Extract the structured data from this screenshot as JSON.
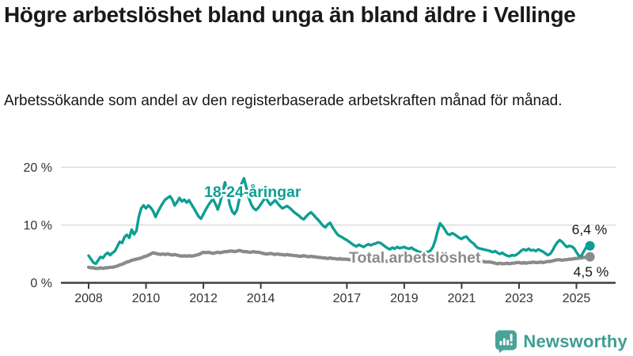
{
  "header": {
    "title": "Högre arbetslöshet bland unga än bland äldre i Vellinge",
    "subtitle": "Arbetssökande som andel av den registerbaserade arbetskraften månad för månad."
  },
  "chart_data": {
    "type": "line",
    "title": "Högre arbetslöshet bland unga än bland äldre i Vellinge",
    "subtitle": "Arbetssökande som andel av den registerbaserade arbetskraften månad för månad.",
    "x_start": "2008-01",
    "x_end": "2025-06",
    "frequency": "monthly",
    "ylim": [
      0,
      20
    ],
    "grid": "horizontal",
    "yticks": [
      {
        "value": 0,
        "label": "0 %"
      },
      {
        "value": 10,
        "label": "10 %"
      },
      {
        "value": 20,
        "label": "20 %"
      }
    ],
    "xticks": [
      "2008",
      "2010",
      "2012",
      "2014",
      "2017",
      "2019",
      "2021",
      "2023",
      "2025"
    ],
    "xtick_years": [
      2008,
      2010,
      2012,
      2014,
      2017,
      2019,
      2021,
      2023,
      2025
    ],
    "series": [
      {
        "name": "18-24-åringar",
        "color": "#0d9e93",
        "end_label": "6,4 %",
        "end_value": 6.4,
        "values": [
          4.7,
          4.1,
          3.5,
          3.3,
          3.9,
          4.5,
          4.3,
          4.9,
          5.2,
          4.8,
          5.2,
          5.5,
          6.3,
          7.1,
          6.9,
          7.9,
          8.3,
          7.8,
          9.2,
          8.4,
          9.0,
          11.5,
          12.9,
          13.4,
          12.9,
          13.4,
          13.0,
          12.4,
          11.4,
          12.3,
          13.1,
          13.8,
          14.4,
          14.7,
          15.0,
          14.4,
          13.4,
          14.0,
          14.7,
          14.1,
          14.4,
          13.9,
          14.3,
          13.6,
          12.9,
          12.2,
          11.5,
          11.1,
          11.9,
          12.7,
          13.4,
          14.0,
          14.5,
          13.7,
          12.7,
          13.9,
          15.6,
          17.4,
          15.8,
          13.6,
          12.4,
          11.9,
          12.6,
          14.4,
          17.2,
          18.1,
          16.4,
          14.7,
          13.6,
          12.9,
          12.6,
          13.0,
          13.6,
          14.2,
          14.8,
          14.1,
          13.5,
          13.9,
          14.3,
          13.8,
          13.3,
          12.9,
          13.1,
          13.3,
          13.0,
          12.6,
          12.2,
          11.9,
          11.6,
          11.2,
          11.0,
          11.5,
          11.9,
          12.2,
          11.8,
          11.3,
          10.9,
          10.4,
          9.9,
          9.6,
          10.1,
          10.4,
          9.6,
          9.0,
          8.4,
          8.1,
          7.9,
          7.6,
          7.4,
          7.1,
          6.8,
          6.5,
          6.3,
          6.6,
          6.4,
          6.2,
          6.5,
          6.7,
          6.5,
          6.7,
          6.8,
          7.0,
          6.9,
          6.6,
          6.3,
          6.0,
          5.8,
          6.1,
          5.9,
          6.2,
          6.0,
          6.1,
          6.2,
          6.0,
          5.9,
          6.1,
          5.8,
          5.6,
          5.4,
          5.3,
          5.2,
          5.4,
          5.3,
          5.6,
          6.2,
          7.4,
          9.0,
          10.3,
          9.8,
          9.2,
          8.5,
          8.3,
          8.6,
          8.4,
          8.1,
          7.8,
          7.6,
          7.9,
          8.0,
          7.5,
          7.1,
          6.8,
          6.3,
          6.0,
          5.9,
          5.8,
          5.7,
          5.6,
          5.5,
          5.3,
          5.5,
          5.2,
          5.0,
          5.2,
          4.9,
          4.7,
          4.6,
          4.8,
          4.7,
          4.9,
          5.2,
          5.6,
          5.8,
          5.6,
          5.9,
          5.6,
          5.7,
          5.5,
          5.8,
          5.6,
          5.4,
          5.1,
          4.8,
          5.0,
          5.6,
          6.4,
          7.0,
          7.4,
          7.1,
          6.6,
          6.2,
          6.4,
          6.3,
          6.0,
          5.3,
          4.7,
          4.6,
          5.4,
          6.1,
          6.4
        ]
      },
      {
        "name": "Total arbetslöshet",
        "color": "#8a8a8a",
        "end_label": "4,5 %",
        "end_value": 4.5,
        "values": [
          2.7,
          2.6,
          2.6,
          2.5,
          2.5,
          2.6,
          2.5,
          2.6,
          2.6,
          2.7,
          2.7,
          2.8,
          2.9,
          3.1,
          3.2,
          3.4,
          3.6,
          3.7,
          3.9,
          4.0,
          4.1,
          4.2,
          4.3,
          4.5,
          4.6,
          4.8,
          5.0,
          5.2,
          5.1,
          5.0,
          4.9,
          5.0,
          4.9,
          5.0,
          4.9,
          4.8,
          4.9,
          4.8,
          4.7,
          4.6,
          4.7,
          4.6,
          4.7,
          4.6,
          4.7,
          4.8,
          4.9,
          5.1,
          5.3,
          5.2,
          5.3,
          5.2,
          5.1,
          5.2,
          5.3,
          5.2,
          5.3,
          5.4,
          5.4,
          5.5,
          5.5,
          5.4,
          5.5,
          5.6,
          5.5,
          5.4,
          5.4,
          5.3,
          5.3,
          5.4,
          5.3,
          5.3,
          5.2,
          5.1,
          5.0,
          5.0,
          5.1,
          5.0,
          4.9,
          5.0,
          4.9,
          4.9,
          4.8,
          4.9,
          4.8,
          4.8,
          4.7,
          4.7,
          4.6,
          4.6,
          4.7,
          4.6,
          4.5,
          4.6,
          4.5,
          4.5,
          4.4,
          4.4,
          4.3,
          4.3,
          4.2,
          4.3,
          4.2,
          4.2,
          4.1,
          4.2,
          4.1,
          4.1,
          4.1,
          4.0,
          4.0,
          3.9,
          4.0,
          3.9,
          3.9,
          4.0,
          3.9,
          3.9,
          3.8,
          3.9,
          3.9,
          3.8,
          3.9,
          3.8,
          3.8,
          3.7,
          3.8,
          3.7,
          3.8,
          3.7,
          3.8,
          3.7,
          3.7,
          3.8,
          3.7,
          3.7,
          3.6,
          3.7,
          3.6,
          3.7,
          3.7,
          3.6,
          3.7,
          3.8,
          3.9,
          4.0,
          4.2,
          4.4,
          4.5,
          4.4,
          4.4,
          4.3,
          4.4,
          4.3,
          4.3,
          4.2,
          4.2,
          4.1,
          4.1,
          4.0,
          3.9,
          3.9,
          3.8,
          3.8,
          3.7,
          3.7,
          3.6,
          3.6,
          3.6,
          3.5,
          3.4,
          3.3,
          3.4,
          3.3,
          3.3,
          3.4,
          3.3,
          3.4,
          3.4,
          3.5,
          3.5,
          3.4,
          3.5,
          3.4,
          3.5,
          3.5,
          3.6,
          3.5,
          3.5,
          3.6,
          3.5,
          3.6,
          3.7,
          3.7,
          3.8,
          3.9,
          4.0,
          4.0,
          3.9,
          4.0,
          4.0,
          4.1,
          4.1,
          4.2,
          4.2,
          4.3,
          4.3,
          4.4,
          4.4,
          4.5
        ]
      }
    ],
    "colors": {
      "youth_line": "#0d9e93",
      "total_line": "#8a8a8a",
      "axis": "#3d3d3d",
      "gridline": "#dbdbdb",
      "tick_text": "#333333",
      "brand": "#3f9d90"
    }
  },
  "footer": {
    "brand": "Newsworthy"
  }
}
